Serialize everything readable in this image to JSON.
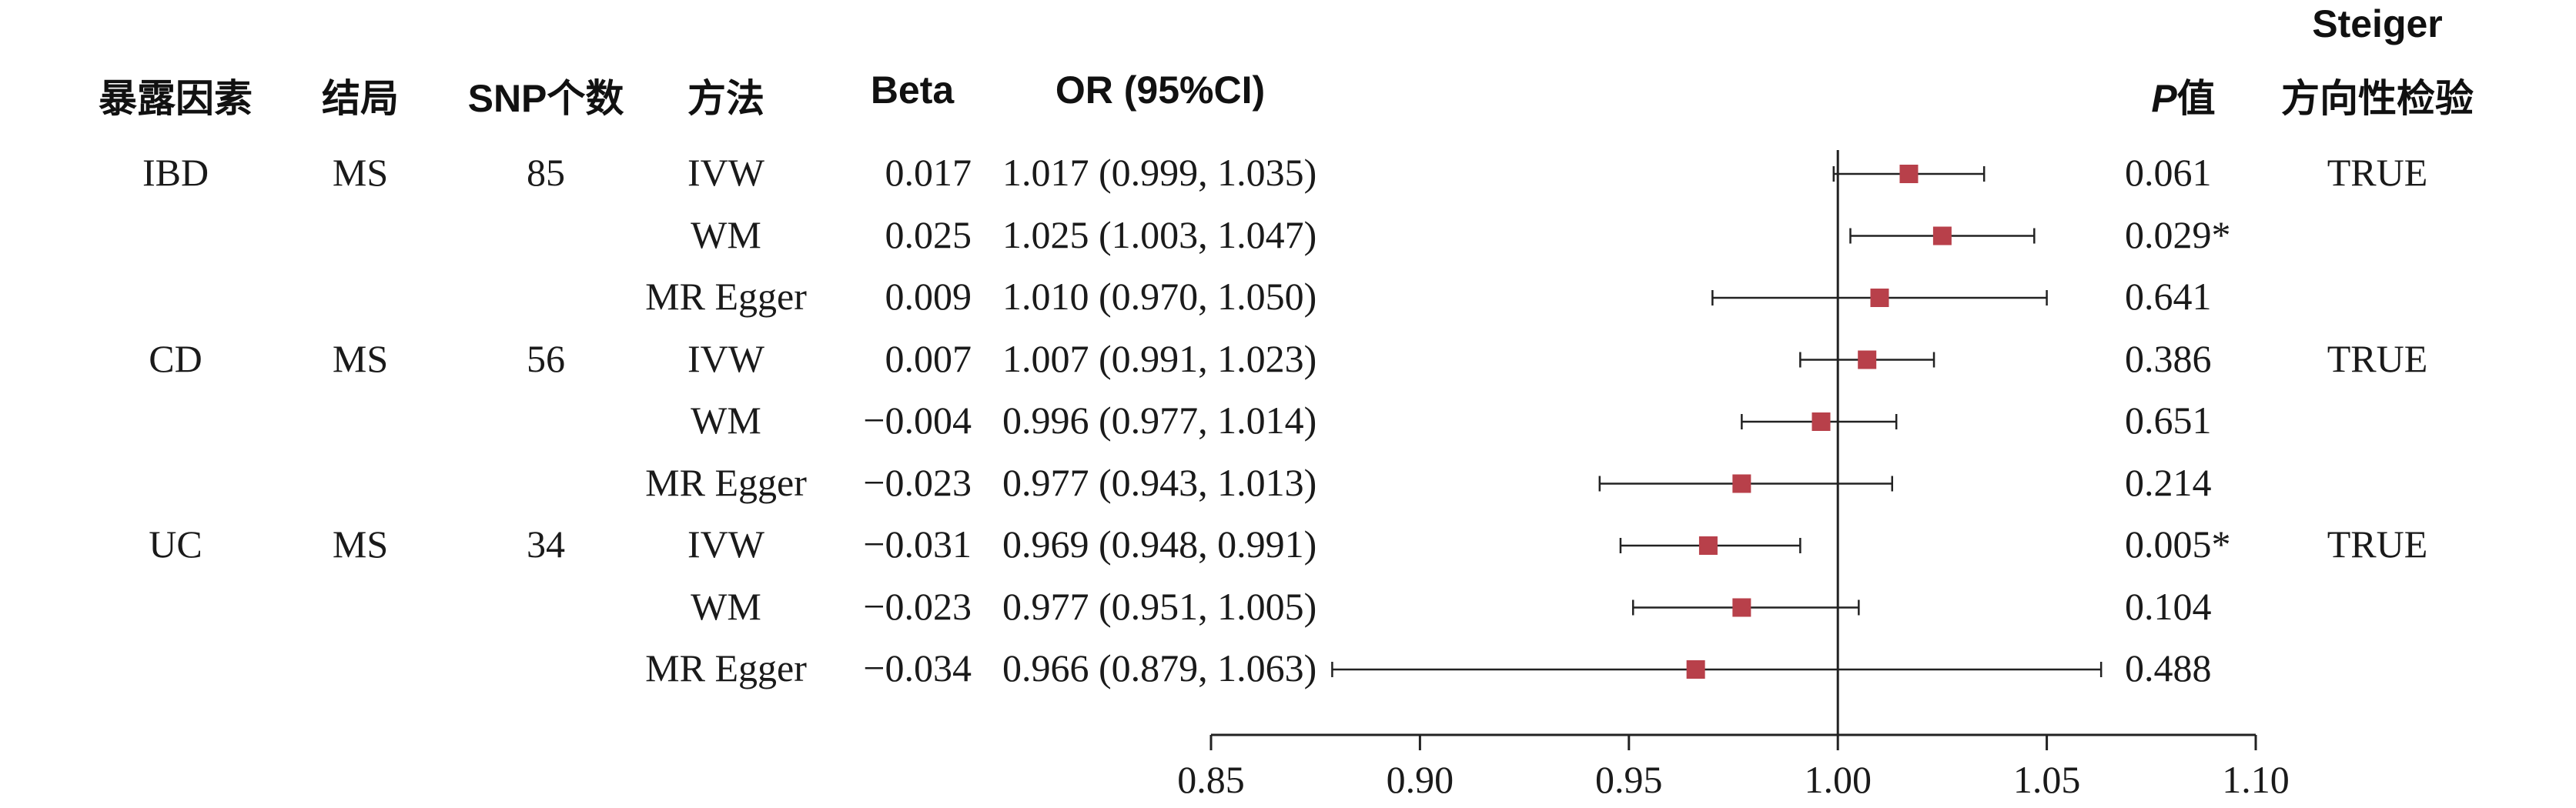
{
  "headers": {
    "exposure": "暴露因素",
    "outcome": "结局",
    "snp_count": "SNP个数",
    "method": "方法",
    "beta": "Beta",
    "or_ci": "OR (95%CI)",
    "p_italic": "P",
    "p_suffix": "值",
    "steiger_line1": "Steiger",
    "steiger_line2": "方向性检验"
  },
  "rows": [
    {
      "exposure": "IBD",
      "outcome": "MS",
      "snp": "85",
      "method": "IVW",
      "beta": "0.017",
      "or_text": "1.017 (0.999, 1.035)",
      "p": "0.061",
      "steiger": "TRUE"
    },
    {
      "exposure": "",
      "outcome": "",
      "snp": "",
      "method": "WM",
      "beta": "0.025",
      "or_text": "1.025 (1.003, 1.047)",
      "p": "0.029*",
      "steiger": ""
    },
    {
      "exposure": "",
      "outcome": "",
      "snp": "",
      "method": "MR Egger",
      "beta": "0.009",
      "or_text": "1.010 (0.970, 1.050)",
      "p": "0.641",
      "steiger": ""
    },
    {
      "exposure": "CD",
      "outcome": "MS",
      "snp": "56",
      "method": "IVW",
      "beta": "0.007",
      "or_text": "1.007 (0.991, 1.023)",
      "p": "0.386",
      "steiger": "TRUE"
    },
    {
      "exposure": "",
      "outcome": "",
      "snp": "",
      "method": "WM",
      "beta": "−0.004",
      "or_text": "0.996 (0.977, 1.014)",
      "p": "0.651",
      "steiger": ""
    },
    {
      "exposure": "",
      "outcome": "",
      "snp": "",
      "method": "MR Egger",
      "beta": "−0.023",
      "or_text": "0.977 (0.943, 1.013)",
      "p": "0.214",
      "steiger": ""
    },
    {
      "exposure": "UC",
      "outcome": "MS",
      "snp": "34",
      "method": "IVW",
      "beta": "−0.031",
      "or_text": "0.969 (0.948, 0.991)",
      "p": "0.005*",
      "steiger": "TRUE"
    },
    {
      "exposure": "",
      "outcome": "",
      "snp": "",
      "method": "WM",
      "beta": "−0.023",
      "or_text": "0.977 (0.951, 1.005)",
      "p": "0.104",
      "steiger": ""
    },
    {
      "exposure": "",
      "outcome": "",
      "snp": "",
      "method": "MR Egger",
      "beta": "−0.034",
      "or_text": "0.966 (0.879, 1.063)",
      "p": "0.488",
      "steiger": ""
    }
  ],
  "chart_data": {
    "type": "scatter",
    "subtype": "forest",
    "x_ticks": [
      "0.85",
      "0.90",
      "0.95",
      "1.00",
      "1.05",
      "1.10"
    ],
    "xlim": [
      0.85,
      1.1
    ],
    "reference_line": 1.0,
    "marker_color": "#b8404a",
    "points": [
      {
        "or": 1.017,
        "lo": 0.999,
        "hi": 1.035
      },
      {
        "or": 1.025,
        "lo": 1.003,
        "hi": 1.047
      },
      {
        "or": 1.01,
        "lo": 0.97,
        "hi": 1.05
      },
      {
        "or": 1.007,
        "lo": 0.991,
        "hi": 1.023
      },
      {
        "or": 0.996,
        "lo": 0.977,
        "hi": 1.014
      },
      {
        "or": 0.977,
        "lo": 0.943,
        "hi": 1.013
      },
      {
        "or": 0.969,
        "lo": 0.948,
        "hi": 0.991
      },
      {
        "or": 0.977,
        "lo": 0.951,
        "hi": 1.005
      },
      {
        "or": 0.966,
        "lo": 0.879,
        "hi": 1.063
      }
    ],
    "grid": false
  }
}
